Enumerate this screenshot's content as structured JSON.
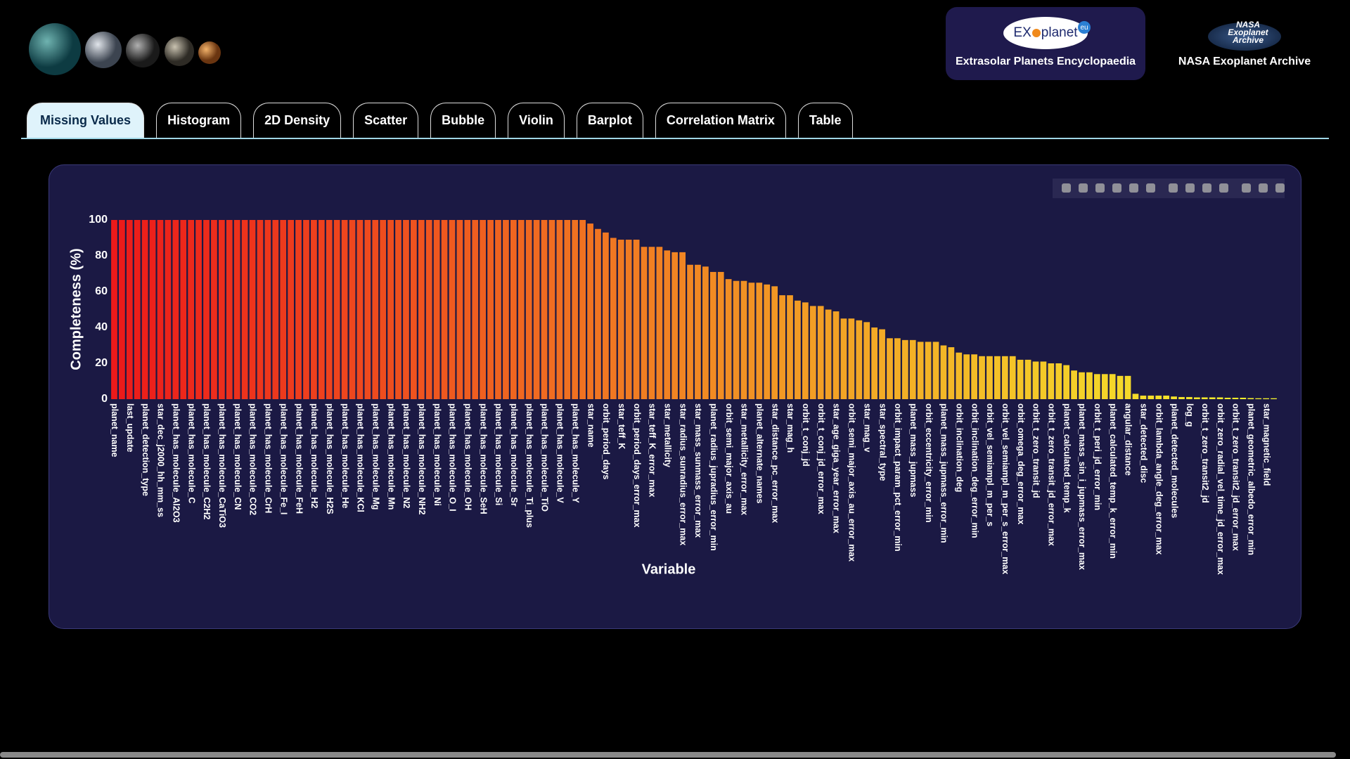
{
  "header": {
    "exoplanet_logo": [
      "EX",
      "planet"
    ],
    "exoplanet_badge": "eu",
    "exoplanet_caption": "Extrasolar Planets Encyclopaedia",
    "nasa_logo": [
      "NASA",
      "Exoplanet",
      "Archive"
    ],
    "nasa_caption": "NASA Exoplanet Archive"
  },
  "tabs": [
    "Missing Values",
    "Histogram",
    "2D Density",
    "Scatter",
    "Bubble",
    "Violin",
    "Barplot",
    "Correlation Matrix",
    "Table"
  ],
  "chart_data": {
    "type": "bar",
    "xlabel": "Variable",
    "ylabel": "Completeness (%)",
    "colors": [
      "#ec1a1a",
      "#f6f52c"
    ],
    "categories": [
      "planet_name",
      null,
      "last_update",
      null,
      "planet_detection_type",
      null,
      "star_dec_j2000_hh_mm_ss",
      null,
      "planet_has_molecule_Al2O3",
      null,
      "planet_has_molecule_C",
      null,
      "planet_has_molecule_C2H2",
      null,
      "planet_has_molecule_CaTiO3",
      null,
      "planet_has_molecule_CN",
      null,
      "planet_has_molecule_CO2",
      null,
      "planet_has_molecule_CrH",
      null,
      "planet_has_molecule_Fe_I",
      null,
      "planet_has_molecule_FeH",
      null,
      "planet_has_molecule_H2",
      null,
      "planet_has_molecule_H2S",
      null,
      "planet_has_molecule_He",
      null,
      "planet_has_molecule_KCl",
      null,
      "planet_has_molecule_Mg",
      null,
      "planet_has_molecule_Mn",
      null,
      "planet_has_molecule_N2",
      null,
      "planet_has_molecule_NH2",
      null,
      "planet_has_molecule_Ni",
      null,
      "planet_has_molecule_O_I",
      null,
      "planet_has_molecule_OH",
      null,
      "planet_has_molecule_SeH",
      null,
      "planet_has_molecule_Si",
      null,
      "planet_has_molecule_Sr",
      null,
      "planet_has_molecule_Ti_plus",
      null,
      "planet_has_molecule_TiO",
      null,
      "planet_has_molecule_V",
      null,
      "planet_has_molecule_Y",
      null,
      "star_name",
      null,
      "orbit_period_days",
      null,
      "star_teff_K",
      null,
      "orbit_period_days_error_max",
      null,
      "star_teff_K_error_max",
      null,
      "star_metallicity",
      null,
      "star_radius_sunradius_error_max",
      null,
      "star_mass_sunmass_error_max",
      null,
      "planet_radius_jupradius_error_min",
      null,
      "orbit_semi_major_axis_au",
      null,
      "star_metallicity_error_max",
      null,
      "planet_alternate_names",
      null,
      "star_distance_pc_error_max",
      null,
      "star_mag_h",
      null,
      "orbit_t_conj_jd",
      null,
      "orbit_t_conj_jd_error_max",
      null,
      "star_age_giga_year_error_max",
      null,
      "orbit_semi_major_axis_au_error_max",
      null,
      "star_mag_v",
      null,
      "star_spectral_type",
      null,
      "orbit_impact_param_pct_error_min",
      null,
      "planet_mass_jupmass",
      null,
      "orbit_eccentricity_error_min",
      null,
      "planet_mass_jupmass_error_min",
      null,
      "orbit_inclination_deg",
      null,
      "orbit_inclination_deg_error_min",
      null,
      "orbit_vel_semiampl_m_per_s",
      null,
      "orbit_vel_semiampl_m_per_s_error_max",
      null,
      "orbit_omega_deg_error_max",
      null,
      "orbit_t_zero_transit_jd",
      null,
      "orbit_t_zero_transit_jd_error_max",
      null,
      "planet_calculated_temp_k",
      null,
      "planet_mass_sin_i_jupmass_error_max",
      null,
      "orbit_t_peri_jd_error_min",
      null,
      "planet_calculated_temp_k_error_min",
      null,
      "angular_distance",
      null,
      "star_detected_disc",
      null,
      "orbit_lambda_angle_deg_error_max",
      null,
      "planet_detected_molecules",
      null,
      "log_g",
      null,
      "orbit_t_zero_transit2_jd",
      null,
      "orbit_zero_radial_vel_time_jd_error_max",
      null,
      "orbit_t_zero_transit2_jd_error_max",
      null,
      "planet_geometric_albedo_error_min",
      null,
      "star_magnetic_field",
      null
    ],
    "values": [
      100,
      100,
      100,
      100,
      100,
      100,
      100,
      100,
      100,
      100,
      100,
      100,
      100,
      100,
      100,
      100,
      100,
      100,
      100,
      100,
      100,
      100,
      100,
      100,
      100,
      100,
      100,
      100,
      100,
      100,
      100,
      100,
      100,
      100,
      100,
      100,
      100,
      100,
      100,
      100,
      100,
      100,
      100,
      100,
      100,
      100,
      100,
      100,
      100,
      100,
      100,
      100,
      100,
      100,
      100,
      100,
      100,
      100,
      100,
      100,
      100,
      100,
      98,
      95,
      93,
      90,
      89,
      89,
      89,
      85,
      85,
      85,
      83,
      82,
      82,
      75,
      75,
      74,
      71,
      71,
      67,
      66,
      66,
      65,
      65,
      64,
      63,
      58,
      58,
      55,
      54,
      52,
      52,
      50,
      49,
      45,
      45,
      44,
      43,
      40,
      39,
      34,
      34,
      33,
      33,
      32,
      32,
      32,
      30,
      29,
      26,
      25,
      25,
      24,
      24,
      24,
      24,
      24,
      22,
      22,
      21,
      21,
      20,
      20,
      19,
      16,
      15,
      15,
      14,
      14,
      14,
      13,
      13,
      3,
      2,
      2,
      2,
      2,
      1.5,
      1.2,
      1.2,
      1,
      1,
      1,
      1,
      0.8,
      0.8,
      0.8,
      0.6,
      0.5,
      0.5,
      0.5
    ],
    "ylim": [
      0,
      100
    ],
    "yticks": [
      0,
      20,
      40,
      60,
      80,
      100
    ]
  }
}
